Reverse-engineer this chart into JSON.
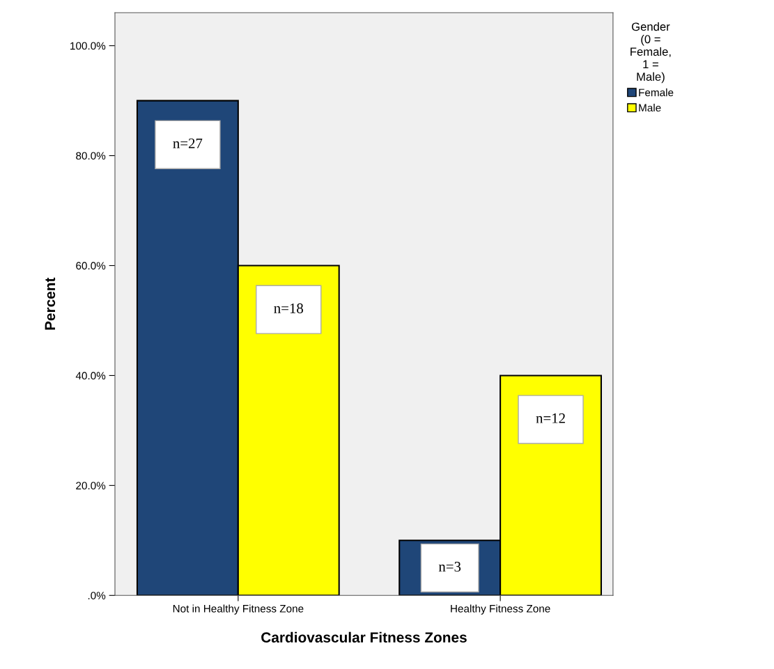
{
  "chart_data": {
    "type": "bar",
    "xlabel": "Cardiovascular Fitness Zones",
    "ylabel": "Percent",
    "categories": [
      "Not in Healthy Fitness Zone",
      "Healthy Fitness Zone"
    ],
    "series": [
      {
        "name": "Female",
        "color": "#1f4678",
        "values": [
          90,
          10
        ]
      },
      {
        "name": "Male",
        "color": "#ffff00",
        "values": [
          60,
          40
        ]
      }
    ],
    "annotations": [
      "n=27",
      "n=3",
      "n=18",
      "n=12"
    ],
    "legend_title": "Gender\n(0 =\nFemale,\n1 =\nMale)",
    "legend": "top right",
    "ylim": [
      0,
      106
    ],
    "yticks": [
      {
        "value": 0,
        "label": ".0%"
      },
      {
        "value": 20,
        "label": "20.0%"
      },
      {
        "value": 40,
        "label": "40.0%"
      },
      {
        "value": 60,
        "label": "60.0%"
      },
      {
        "value": 80,
        "label": "80.0%"
      },
      {
        "value": 100,
        "label": "100.0%"
      }
    ],
    "grid": false
  }
}
